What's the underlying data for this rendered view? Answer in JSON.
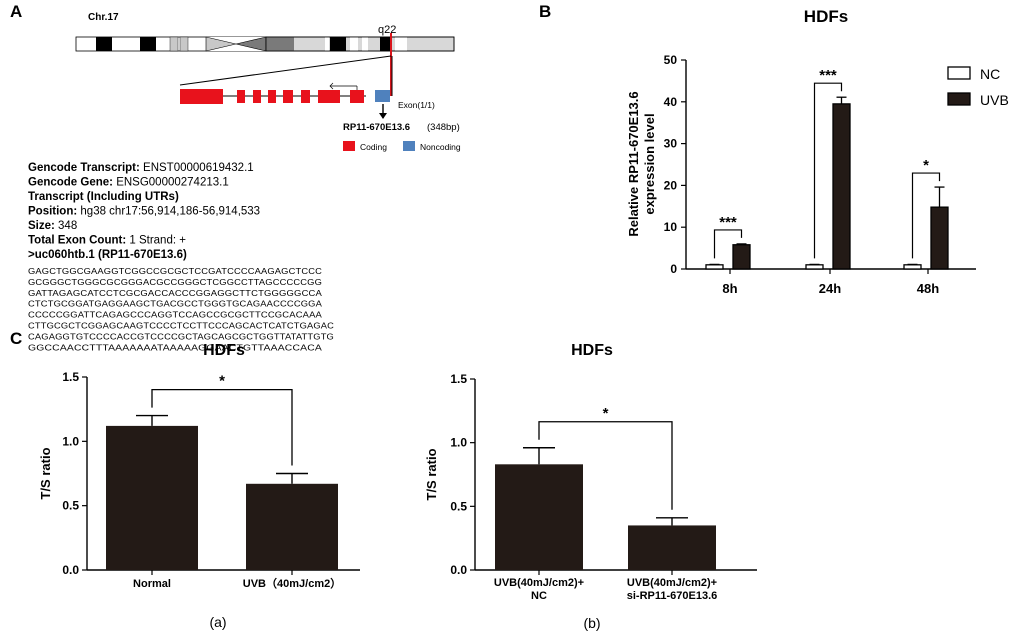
{
  "panels": {
    "a": "A",
    "b": "B",
    "c": "C"
  },
  "gene": {
    "chromosome": "Chr.17",
    "band": "q22",
    "exon_label": "Exon(1/1)",
    "name": "RP11-670E13.6",
    "length": "(348bp)",
    "legend_coding": "Coding",
    "legend_noncoding": "Noncoding",
    "info": [
      {
        "label": "Gencode Transcript:",
        "value": " ENST00000619432.1"
      },
      {
        "label": "Gencode Gene:",
        "value": " ENSG00000274213.1"
      },
      {
        "label": "Transcript (Including UTRs)",
        "value": ""
      },
      {
        "label": "Position:",
        "value": " hg38 chr17:56,914,186-56,914,533"
      },
      {
        "label": "Size:",
        "value": " 348"
      },
      {
        "label": "Total Exon Count:",
        "value": " 1 Strand: +"
      },
      {
        "label": ">uc060htb.1 (RP11-670E13.6)",
        "value": ""
      }
    ],
    "sequence": [
      "GAGCTGGCGAAGGTCGGCCGCGCTCCGATCCCCAAGAGCTCCC",
      "GCGGGCTGGGCGCGGGACGCCGGGCTCGGCCTTAGCCCCCGG",
      "GATTAGAGCATCCTCGCGACCACCCGGAGGCTTCTGGGGGCCA",
      "CTCTGCGGATGAGGAAGCTGACGCCTGGGTGCAGAACCCCGGA",
      "CCCCCGGATTCAGAGCCCAGGTCCAGCCGCGCTTCCGCACAAA",
      "CTTGCGCTCGGAGCAAGTCCCCTCCTTCCCAGCACTCATCTGAGAC",
      "CAGAGGTGTCCCCACCGTCCCCGCTAGCAGCGCTGGTTATATTGTG",
      "GGCCAACCTTTAAAAAAATAAAAAGGAACTGTTAAACCACA"
    ]
  },
  "colors": {
    "bar": "#231a16",
    "coding": "#e8121c",
    "noncoding": "#4f81bd",
    "band_marker": "#d9141b"
  },
  "chart_data": [
    {
      "type": "bar",
      "panel": "B",
      "title": "HDFs",
      "ylabel_line1": "Relative RP11-670E13.6",
      "ylabel_line2": "expression level",
      "xlabel": "",
      "categories": [
        "8h",
        "24h",
        "48h"
      ],
      "series": [
        {
          "name": "NC",
          "values": [
            1.0,
            1.0,
            1.0
          ],
          "errors": [
            0.1,
            0.1,
            0.1
          ]
        },
        {
          "name": "UVB",
          "values": [
            5.8,
            39.5,
            14.8
          ],
          "errors": [
            0.2,
            1.6,
            4.8
          ]
        }
      ],
      "significance": [
        "***",
        "***",
        "*"
      ],
      "ylim": [
        0,
        50
      ],
      "yticks": [
        "0",
        "10",
        "20",
        "30",
        "40",
        "50"
      ],
      "legend": "top-right"
    },
    {
      "type": "bar",
      "panel": "C(a)",
      "title": "HDFs",
      "ylabel": "T/S ratio",
      "categories": [
        "Normal",
        "UVB（40mJ/cm2）"
      ],
      "values": [
        1.12,
        0.67
      ],
      "errors": [
        0.08,
        0.08
      ],
      "significance": "*",
      "ylim": [
        0,
        1.5
      ],
      "yticks": [
        "0.0",
        "0.5",
        "1.0",
        "1.5"
      ],
      "sublabel": "(a)"
    },
    {
      "type": "bar",
      "panel": "C(b)",
      "title": "HDFs",
      "ylabel": "T/S ratio",
      "categories": [
        [
          "UVB(40mJ/cm2)+",
          "NC"
        ],
        [
          "UVB(40mJ/cm2)+",
          "si-RP11-670E13.6"
        ]
      ],
      "values": [
        0.83,
        0.35
      ],
      "errors": [
        0.13,
        0.06
      ],
      "significance": "*",
      "ylim": [
        0,
        1.5
      ],
      "yticks": [
        "0.0",
        "0.5",
        "1.0",
        "1.5"
      ],
      "sublabel": "(b)"
    }
  ]
}
